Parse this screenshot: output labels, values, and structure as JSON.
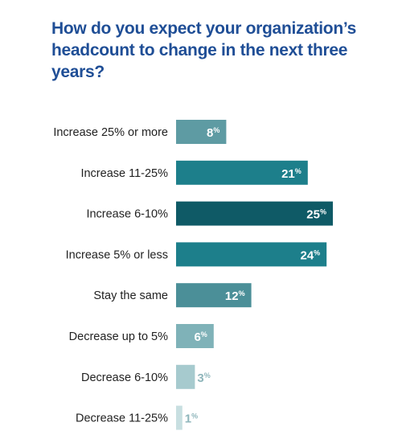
{
  "chart_data": {
    "type": "bar",
    "orientation": "horizontal",
    "title": "How do you expect your organization’s headcount to change in the next three years?",
    "categories": [
      "Increase 25% or more",
      "Increase 11-25%",
      "Increase 6-10%",
      "Increase 5% or less",
      "Stay the same",
      "Decrease up to 5%",
      "Decrease 6-10%",
      "Decrease 11-25%"
    ],
    "values": [
      8,
      21,
      25,
      24,
      12,
      6,
      3,
      1
    ],
    "value_suffix": "%",
    "xlim": [
      0,
      25
    ],
    "grid": false,
    "legend": "none",
    "colors": [
      "#5e9ba3",
      "#1d7f8b",
      "#0f5a66",
      "#1d7f8b",
      "#4b8f98",
      "#7fb2b8",
      "#a6cace",
      "#c8dfe1"
    ]
  }
}
